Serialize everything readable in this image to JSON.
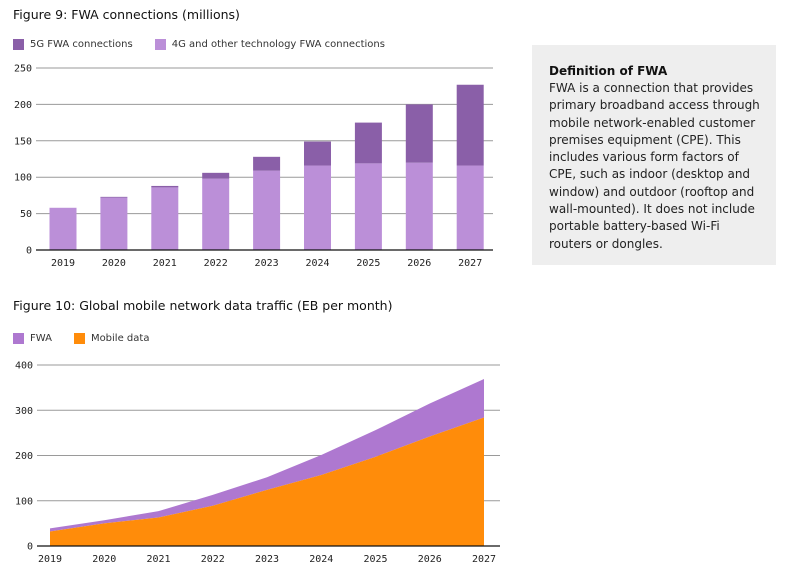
{
  "colors": {
    "fiveg": "#8a5fa8",
    "fourg": "#bb8fd8",
    "fwa": "#ae78d0",
    "mobile": "#ff8c0a",
    "grid": "#9a9a9a",
    "box_bg": "#eeeeee"
  },
  "definition": {
    "title": "Definition of FWA",
    "body": "FWA is a connection that provides primary broadband access through mobile network-enabled customer premises equipment (CPE). This includes various form factors of CPE, such as indoor (desktop and window) and outdoor (rooftop and wall-mounted). It does not include portable battery-based Wi-Fi routers or dongles."
  },
  "chart_data": [
    {
      "type": "bar",
      "stacked": true,
      "title": "Figure 9: FWA connections (millions)",
      "categories": [
        "2019",
        "2020",
        "2021",
        "2022",
        "2023",
        "2024",
        "2025",
        "2026",
        "2027"
      ],
      "series": [
        {
          "name": "4G and other technology FWA connections",
          "values": [
            58,
            72,
            86,
            98,
            109,
            116,
            119,
            120,
            116
          ]
        },
        {
          "name": "5G FWA connections",
          "values": [
            0,
            1,
            2,
            8,
            19,
            33,
            56,
            80,
            111
          ]
        }
      ],
      "legend_order": [
        "5G FWA connections",
        "4G and other technology FWA connections"
      ],
      "ylim": [
        0,
        250
      ],
      "yticks": [
        "0",
        "50",
        "100",
        "150",
        "200",
        "250"
      ],
      "grid": true,
      "legend": "top-left"
    },
    {
      "type": "area",
      "stacked": true,
      "title": "Figure 10: Global mobile network data traffic (EB per month)",
      "categories": [
        "2019",
        "2020",
        "2021",
        "2022",
        "2023",
        "2024",
        "2025",
        "2026",
        "2027"
      ],
      "series": [
        {
          "name": "Mobile data",
          "values": [
            32,
            50,
            63,
            89,
            124,
            157,
            197,
            242,
            284
          ]
        },
        {
          "name": "FWA",
          "values": [
            7,
            7,
            14,
            24,
            28,
            44,
            59,
            73,
            85
          ]
        }
      ],
      "legend_order": [
        "FWA",
        "Mobile data"
      ],
      "ylim": [
        0,
        400
      ],
      "yticks": [
        "0",
        "100",
        "200",
        "300",
        "400"
      ],
      "grid": true,
      "legend": "top-left"
    }
  ]
}
